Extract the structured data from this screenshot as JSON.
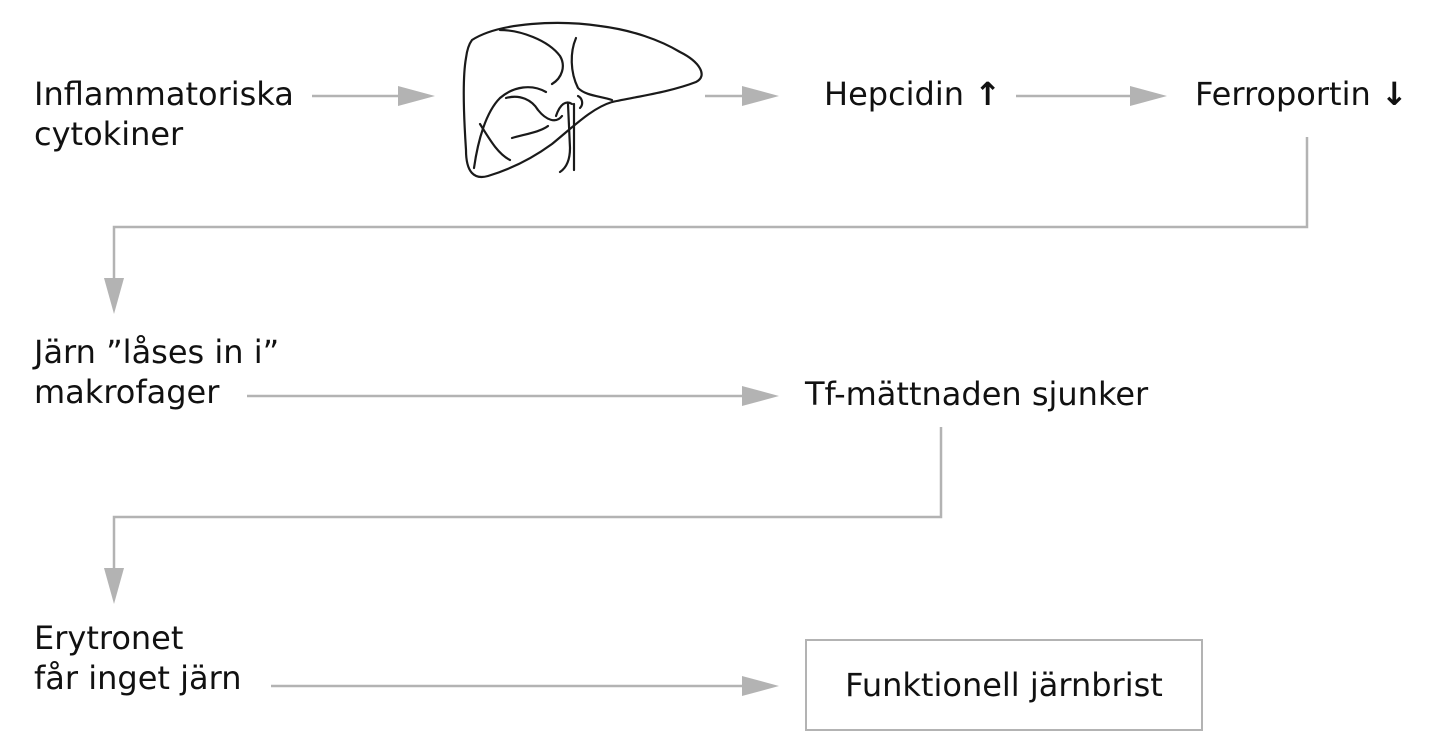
{
  "nodes": {
    "cytokines": {
      "line1": "Inflammatoriska",
      "line2": "cytokiner"
    },
    "liver": {
      "icon": "liver-icon"
    },
    "hepcidin": {
      "label": "Hepcidin",
      "trend_symbol": "↑"
    },
    "ferroportin": {
      "label": "Ferroportin",
      "trend_symbol": "↓"
    },
    "iron_locked": {
      "line1": "Järn ”låses in i”",
      "line2": "makrofager"
    },
    "tf_saturation": {
      "label": "Tf-mättnaden sjunker"
    },
    "erythron": {
      "line1": "Erytronet",
      "line2": "får inget järn"
    },
    "result": {
      "label": "Funktionell järnbrist"
    }
  },
  "edges": [
    {
      "from": "cytokines",
      "to": "liver"
    },
    {
      "from": "liver",
      "to": "hepcidin"
    },
    {
      "from": "hepcidin",
      "to": "ferroportin"
    },
    {
      "from": "ferroportin",
      "to": "iron_locked"
    },
    {
      "from": "iron_locked",
      "to": "tf_saturation"
    },
    {
      "from": "tf_saturation",
      "to": "erythron"
    },
    {
      "from": "erythron",
      "to": "result"
    }
  ],
  "colors": {
    "arrow": "#b3b3b3",
    "text": "#111111",
    "liver_stroke": "#1a1a1a"
  }
}
